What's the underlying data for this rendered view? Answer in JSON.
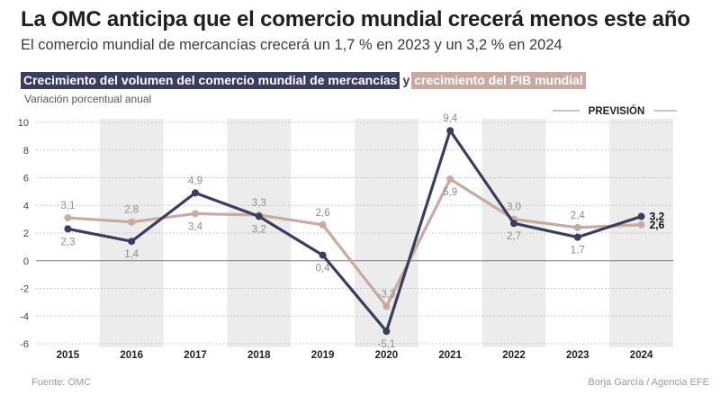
{
  "title": "La OMC anticipa que el comercio mundial crecerá menos este año",
  "subtitle": "El comercio mundial de mercancías crecerá un 1,7 % en 2023 y un  3,2 % en 2024",
  "legend": {
    "series_a": "Crecimiento del volumen del comercio mundial de mercancías",
    "joiner": "y",
    "series_b": "crecimiento del PIB mundial"
  },
  "unit_label": "Variación porcentual anual",
  "forecast_label": "PREVISIÓN",
  "source": "Fuente: OMC",
  "credit": "Borja García / Agencia EFE",
  "colors": {
    "trade": "#3b3d5e",
    "gdp": "#c9aaa2",
    "band": "#ececec",
    "grid": "#bdbdbd",
    "label": "#8c8c8c"
  },
  "chart_data": {
    "type": "line",
    "x": [
      "2015",
      "2016",
      "2017",
      "2018",
      "2019",
      "2020",
      "2021",
      "2022",
      "2023",
      "2024"
    ],
    "yticks": [
      "10",
      "8",
      "6",
      "4",
      "2",
      "0",
      "-2",
      "-4",
      "-6"
    ],
    "ylim": [
      -6,
      10
    ],
    "grid": true,
    "series": [
      {
        "name": "Crecimiento del volumen del comercio mundial de mercancías",
        "key": "trade",
        "values": [
          2.3,
          1.4,
          4.9,
          3.2,
          0.4,
          -5.1,
          9.4,
          2.7,
          1.7,
          3.2
        ],
        "labels": [
          "2,3",
          "1,4",
          "4,9",
          "3,2",
          "0,4",
          "-5,1",
          "9,4",
          "2,7",
          "1,7",
          "3,2"
        ]
      },
      {
        "name": "crecimiento del PIB mundial",
        "key": "gdp",
        "values": [
          3.1,
          2.8,
          3.4,
          3.3,
          2.6,
          -3.3,
          5.9,
          3.0,
          2.4,
          2.6
        ],
        "labels": [
          "3,1",
          "2,8",
          "3,4",
          "3,3",
          "2,6",
          "-3,3",
          "5,9",
          "3,0",
          "2,4",
          "2,6"
        ]
      }
    ]
  }
}
